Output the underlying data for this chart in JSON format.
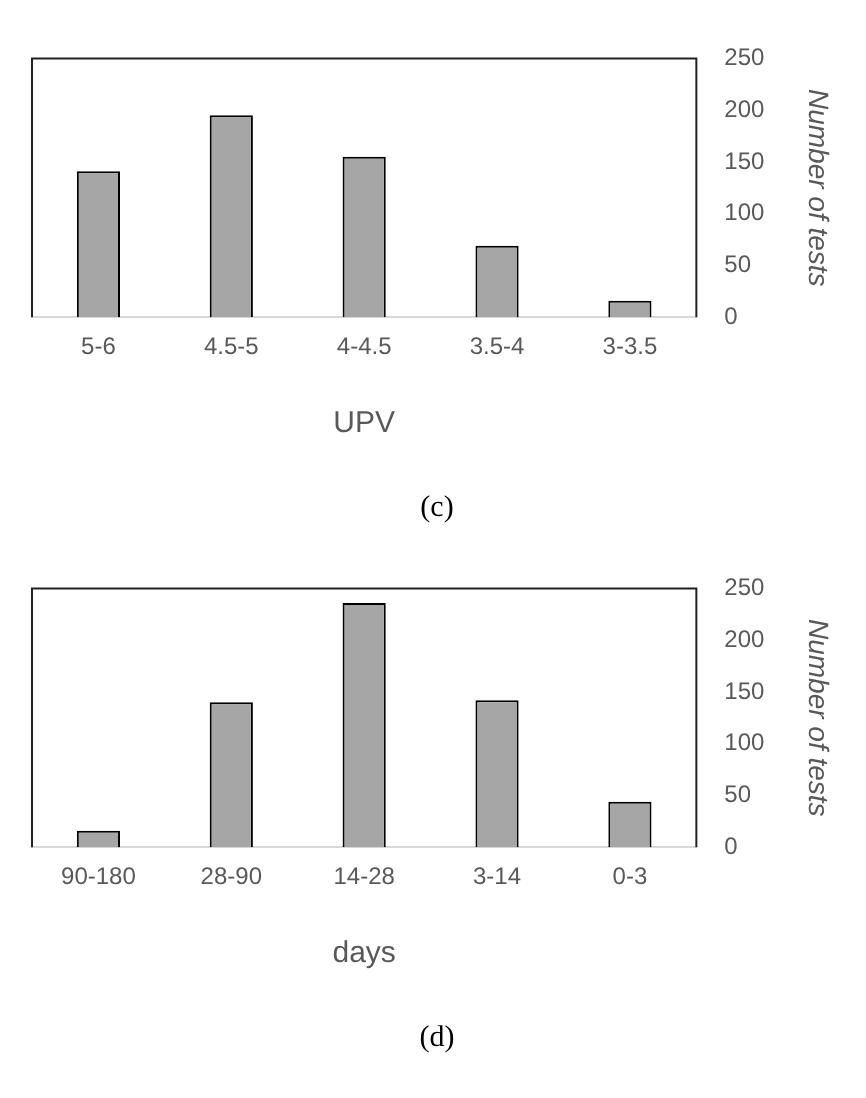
{
  "chart_data": [
    {
      "type": "bar",
      "title": "(c)",
      "xlabel": "UPV",
      "ylabel": "Number of tests",
      "categories": [
        "5-6",
        "4.5-5",
        "4-4.5",
        "3.5-4",
        "3-3.5"
      ],
      "values": [
        141,
        195,
        155,
        69,
        16
      ],
      "color": "#a6a6a6",
      "ylim": [
        0,
        250
      ],
      "yticks": [
        0,
        50,
        100,
        150,
        200,
        250
      ],
      "grid": false
    },
    {
      "type": "bar",
      "title": "(d)",
      "xlabel": "days",
      "ylabel": "Number of tests",
      "categories": [
        "90-180",
        "28-90",
        "14-28",
        "3-14",
        "0-3"
      ],
      "values": [
        16,
        140,
        236,
        142,
        44
      ],
      "color": "#a6a6a6",
      "ylim": [
        0,
        250
      ],
      "yticks": [
        0,
        50,
        100,
        150,
        200,
        250
      ],
      "grid": false
    }
  ]
}
